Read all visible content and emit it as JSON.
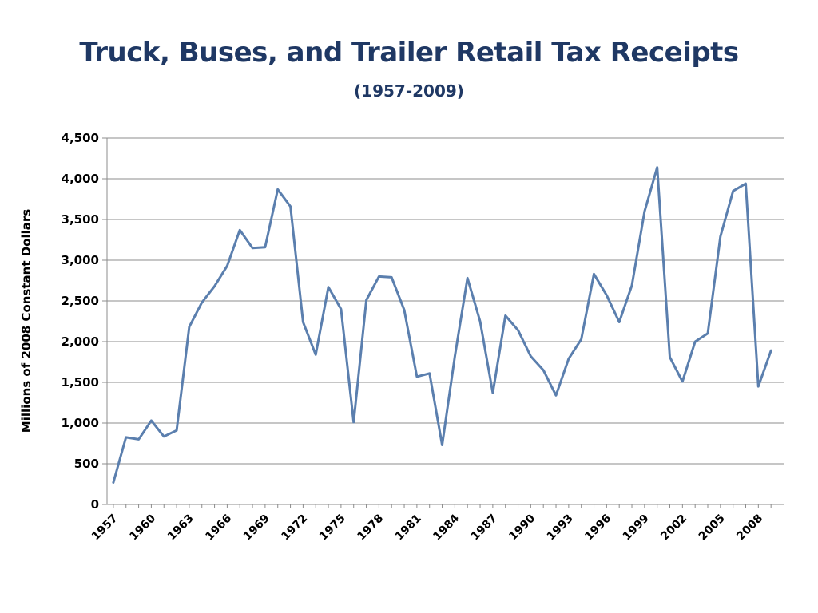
{
  "chart_data": {
    "type": "line",
    "title": "Truck, Buses, and Trailer Retail Tax Receipts",
    "subtitle": "(1957-2009)",
    "ylabel": "Millions of 2008 Constant Dollars",
    "xlabel": "",
    "ylim": [
      0,
      4500
    ],
    "y_ticks": [
      "0",
      "500",
      "1,000",
      "1,500",
      "2,000",
      "2,500",
      "3,000",
      "3,500",
      "4,000",
      "4,500"
    ],
    "y_tick_values": [
      0,
      500,
      1000,
      1500,
      2000,
      2500,
      3000,
      3500,
      4000,
      4500
    ],
    "x_tick_labels": [
      "1957",
      "1960",
      "1963",
      "1966",
      "1969",
      "1972",
      "1975",
      "1978",
      "1981",
      "1984",
      "1987",
      "1990",
      "1993",
      "1996",
      "1999",
      "2002",
      "2005",
      "2008"
    ],
    "grid": "horizontal",
    "line_color": "#5b7fae",
    "series": [
      {
        "x": [
          1957,
          1958,
          1959,
          1960,
          1961,
          1962,
          1963,
          1964,
          1965,
          1966,
          1967,
          1968,
          1969,
          1970,
          1971,
          1972,
          1973,
          1974,
          1975,
          1976,
          1977,
          1978,
          1979,
          1980,
          1981,
          1982,
          1983,
          1984,
          1985,
          1986,
          1987,
          1988,
          1989,
          1990,
          1991,
          1992,
          1993,
          1994,
          1995,
          1996,
          1997,
          1998,
          1999,
          2000,
          2001,
          2002,
          2003,
          2004,
          2005,
          2006,
          2007,
          2008,
          2009
        ],
        "values": [
          270,
          825,
          800,
          1030,
          835,
          910,
          2180,
          2480,
          2680,
          2930,
          3370,
          3150,
          3160,
          3870,
          3660,
          2240,
          1840,
          2670,
          2400,
          1010,
          2510,
          2800,
          2790,
          2390,
          1570,
          1610,
          730,
          1820,
          2780,
          2250,
          1370,
          2320,
          2140,
          1820,
          1650,
          1340,
          1790,
          2030,
          2830,
          2570,
          2240,
          2690,
          3600,
          4140,
          1810,
          1510,
          2000,
          2100,
          3290,
          3850,
          3940,
          1450,
          1890
        ]
      }
    ]
  }
}
